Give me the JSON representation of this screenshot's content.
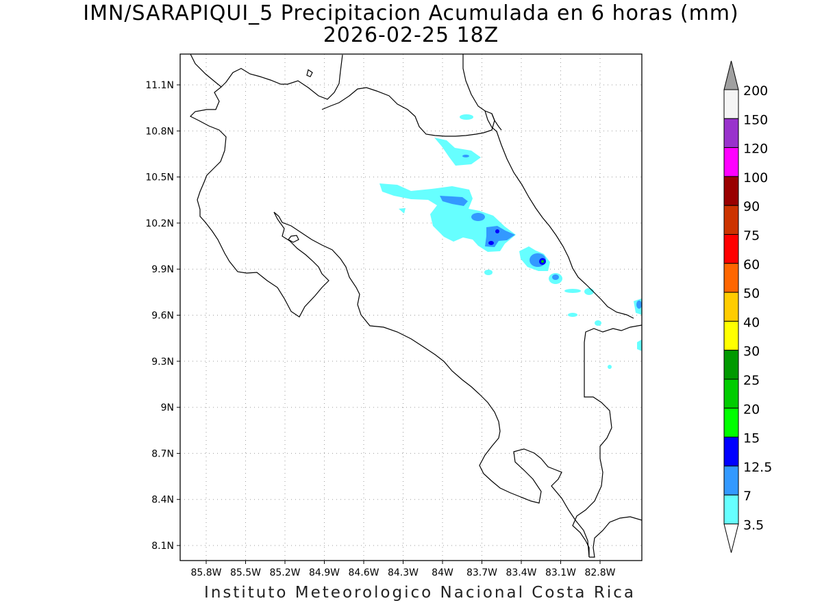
{
  "title_line1": "IMN/SARAPIQUI_5 Precipitacion Acumulada en 6 horas (mm)",
  "title_line2": "2026-02-25 18Z",
  "footer": "Instituto Meteorologico Nacional Costa Rica",
  "map": {
    "lat_ticks": [
      "11.1N",
      "10.8N",
      "10.5N",
      "10.2N",
      "9.9N",
      "9.6N",
      "9.3N",
      "9N",
      "8.7N",
      "8.4N",
      "8.1N"
    ],
    "lon_ticks": [
      "85.8W",
      "85.5W",
      "85.2W",
      "84.9W",
      "84.6W",
      "84.3W",
      "84W",
      "83.7W",
      "83.4W",
      "83.1W",
      "82.8W"
    ]
  },
  "legend": {
    "labels": [
      "200",
      "150",
      "120",
      "100",
      "90",
      "75",
      "60",
      "50",
      "40",
      "30",
      "25",
      "20",
      "15",
      "12.5",
      "7",
      "3.5"
    ],
    "colors": [
      "#a0a0a0",
      "#f5f5f5",
      "#9932cc",
      "#ff00ff",
      "#990000",
      "#cc3300",
      "#ff0000",
      "#ff6600",
      "#ffcc00",
      "#ffff00",
      "#009900",
      "#00cc00",
      "#00ff00",
      "#0000ff",
      "#3399ff",
      "#66ffff",
      "#ffffff"
    ]
  },
  "precip_colors": {
    "light": "#66ffff",
    "moderate": "#3399ff",
    "heavy": "#0000ff",
    "very_heavy": "#00cc00"
  }
}
